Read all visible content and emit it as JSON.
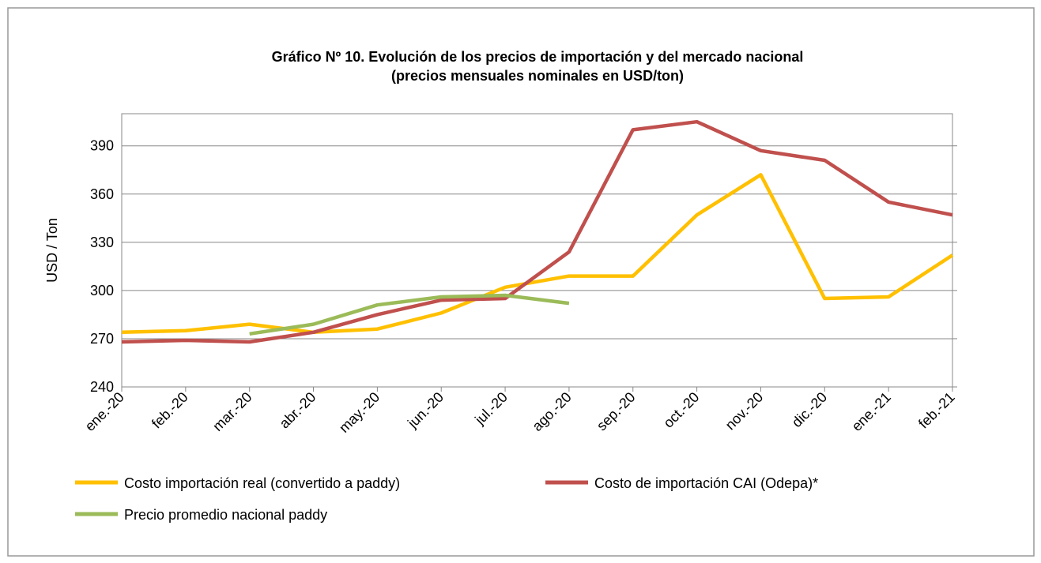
{
  "chart_data": {
    "type": "line",
    "title": "Gráfico Nº 10. Evolución de los precios de importación y del mercado nacional",
    "subtitle": "(precios mensuales nominales en USD/ton)",
    "y_label": "USD / Ton",
    "categories": [
      "ene.-20",
      "feb.-20",
      "mar.-20",
      "abr.-20",
      "may.-20",
      "jun.-20",
      "jul.-20",
      "ago.-20",
      "sep.-20",
      "oct.-20",
      "nov.-20",
      "dic.-20",
      "ene.-21",
      "feb.-21"
    ],
    "series": [
      {
        "name": "Costo importación real (convertido a paddy)",
        "color": "#ffc000",
        "values": [
          274,
          275,
          279,
          274,
          276,
          286,
          302,
          309,
          309,
          347,
          372,
          295,
          296,
          322
        ]
      },
      {
        "name": "Costo de importación CAI (Odepa)*",
        "color": "#c0504d",
        "values": [
          268,
          269,
          268,
          274,
          285,
          294,
          295,
          324,
          400,
          405,
          387,
          381,
          355,
          347
        ]
      },
      {
        "name": "Precio promedio nacional paddy",
        "color": "#9bbb59",
        "values": [
          null,
          null,
          273,
          279,
          291,
          296,
          297,
          292,
          null,
          null,
          null,
          null,
          null,
          null
        ]
      }
    ],
    "ylim": [
      240,
      410
    ],
    "yticks": [
      240,
      270,
      300,
      330,
      360,
      390
    ],
    "grid": true
  }
}
